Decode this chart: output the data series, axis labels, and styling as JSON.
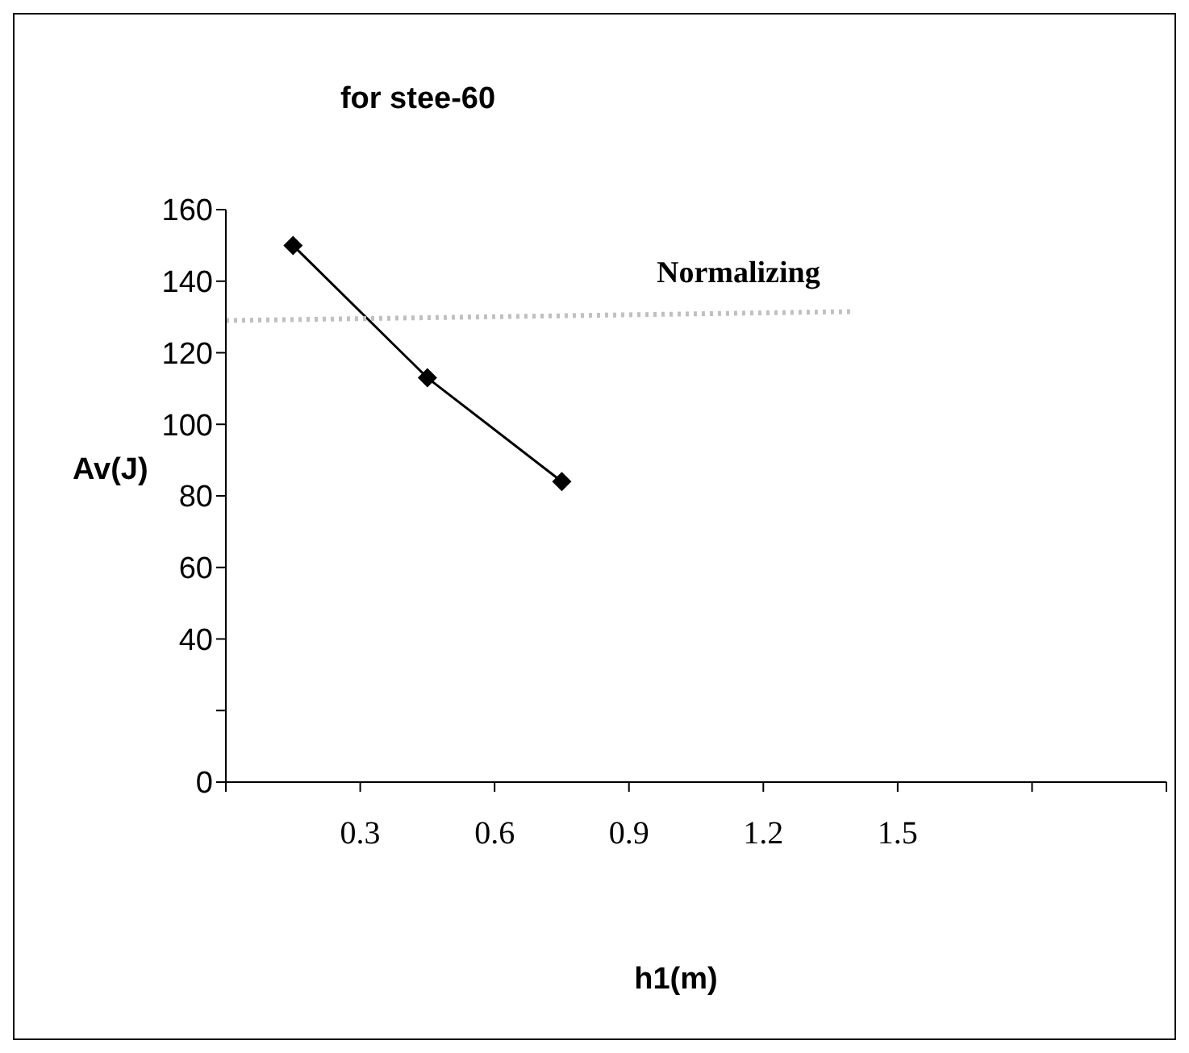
{
  "chart_data": {
    "type": "line",
    "title": "for stee-60",
    "xlabel": "h1(m)",
    "ylabel": "Av(J)",
    "xlim": [
      0,
      2.1
    ],
    "xticks": [
      {
        "value": 0,
        "label": null
      },
      0.3,
      0.6,
      0.9,
      1.2,
      1.5,
      {
        "value": 1.8,
        "label": null
      },
      {
        "value": 2.1,
        "label": null
      }
    ],
    "ylim": [
      0,
      160
    ],
    "yticks": [
      0,
      {
        "value": 20,
        "label": null
      },
      40,
      60,
      80,
      100,
      120,
      140,
      160
    ],
    "grid": false,
    "legend": false,
    "annotations": [
      "Normalizing"
    ],
    "series": [
      {
        "color": "#000000",
        "x": [
          0.15,
          0.45,
          0.75
        ],
        "values": [
          150,
          113,
          84
        ],
        "marker": "diamond",
        "line_style": "solid"
      },
      {
        "color": "#c0c0c0",
        "x": [
          0,
          1.4
        ],
        "values": [
          129,
          131.5
        ],
        "marker": "none",
        "line_style": "dotted"
      }
    ]
  }
}
